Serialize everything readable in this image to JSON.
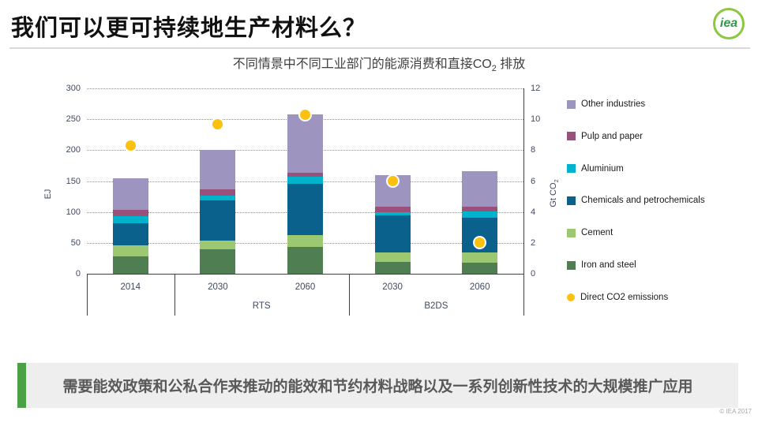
{
  "header": {
    "title": "我们可以更可持续地生产材料么？",
    "logo_text": "iea"
  },
  "chart": {
    "title_main": "不同情景中不同工业部门的能源消费和直接CO",
    "title_sub": "2",
    "title_tail": " 排放"
  },
  "chart_data": {
    "type": "bar",
    "subtype": "stacked-bars-with-scatter-overlay",
    "title": "不同情景中不同工业部门的能源消费和直接CO2 排放",
    "grid": "dotted-horizontal",
    "left_axis": {
      "label": "EJ",
      "range": [
        0,
        300
      ],
      "ticks": [
        0,
        50,
        100,
        150,
        200,
        250,
        300
      ]
    },
    "right_axis": {
      "label_main": "Gt CO",
      "label_sub": "2",
      "range": [
        0,
        12
      ],
      "ticks": [
        0,
        2,
        4,
        6,
        8,
        10,
        12
      ]
    },
    "groups": [
      {
        "scenario": "",
        "years": [
          "2014"
        ]
      },
      {
        "scenario": "RTS",
        "years": [
          "2030",
          "2060"
        ]
      },
      {
        "scenario": "B2DS",
        "years": [
          "2030",
          "2060"
        ]
      }
    ],
    "categories": [
      "2014",
      "RTS 2030",
      "RTS 2060",
      "B2DS 2030",
      "B2DS 2060"
    ],
    "series": [
      {
        "name": "Iron and steel",
        "color": "#4e7e51",
        "values_ej": [
          28,
          40,
          44,
          19,
          18
        ]
      },
      {
        "name": "Cement",
        "color": "#9bc871",
        "values_ej": [
          18,
          13,
          19,
          15,
          16
        ]
      },
      {
        "name": "Chemicals and petrochemicals",
        "color": "#0a618c",
        "values_ej": [
          36,
          66,
          82,
          60,
          57
        ]
      },
      {
        "name": "Aluminium",
        "color": "#00b2cc",
        "values_ej": [
          11,
          8,
          12,
          6,
          10
        ]
      },
      {
        "name": "Pulp and paper",
        "color": "#99517c",
        "values_ej": [
          11,
          9,
          6,
          9,
          7
        ]
      },
      {
        "name": "Other industries",
        "color": "#9d95bf",
        "values_ej": [
          50,
          64,
          95,
          51,
          58
        ]
      }
    ],
    "bar_totals_ej": [
      154,
      200,
      258,
      160,
      166
    ],
    "points": {
      "name": "Direct CO2 emissions",
      "color": "#fcc00e",
      "values_gt": [
        8.3,
        9.7,
        10.3,
        6.0,
        2.0
      ]
    },
    "legend_position": "right"
  },
  "legend": {
    "items": [
      {
        "label": "Other industries",
        "color": "#9d95bf",
        "shape": "square"
      },
      {
        "label": "Pulp and paper",
        "color": "#99517c",
        "shape": "square"
      },
      {
        "label": "Aluminium",
        "color": "#00b2cc",
        "shape": "square"
      },
      {
        "label": "Chemicals and petrochemicals",
        "color": "#0a618c",
        "shape": "square"
      },
      {
        "label": "Cement",
        "color": "#9bc871",
        "shape": "square"
      },
      {
        "label": "Iron and steel",
        "color": "#4e7e51",
        "shape": "square"
      },
      {
        "label": "Direct CO2 emissions",
        "color": "#fcc00e",
        "shape": "circle"
      }
    ]
  },
  "banner": {
    "text": "需要能效政策和公私合作来推动的能效和节约材料战略以及一系列创新性技术的大规模推广应用",
    "accent_color": "#4ca045"
  },
  "footer": {
    "copyright": "© IEA 2017"
  }
}
